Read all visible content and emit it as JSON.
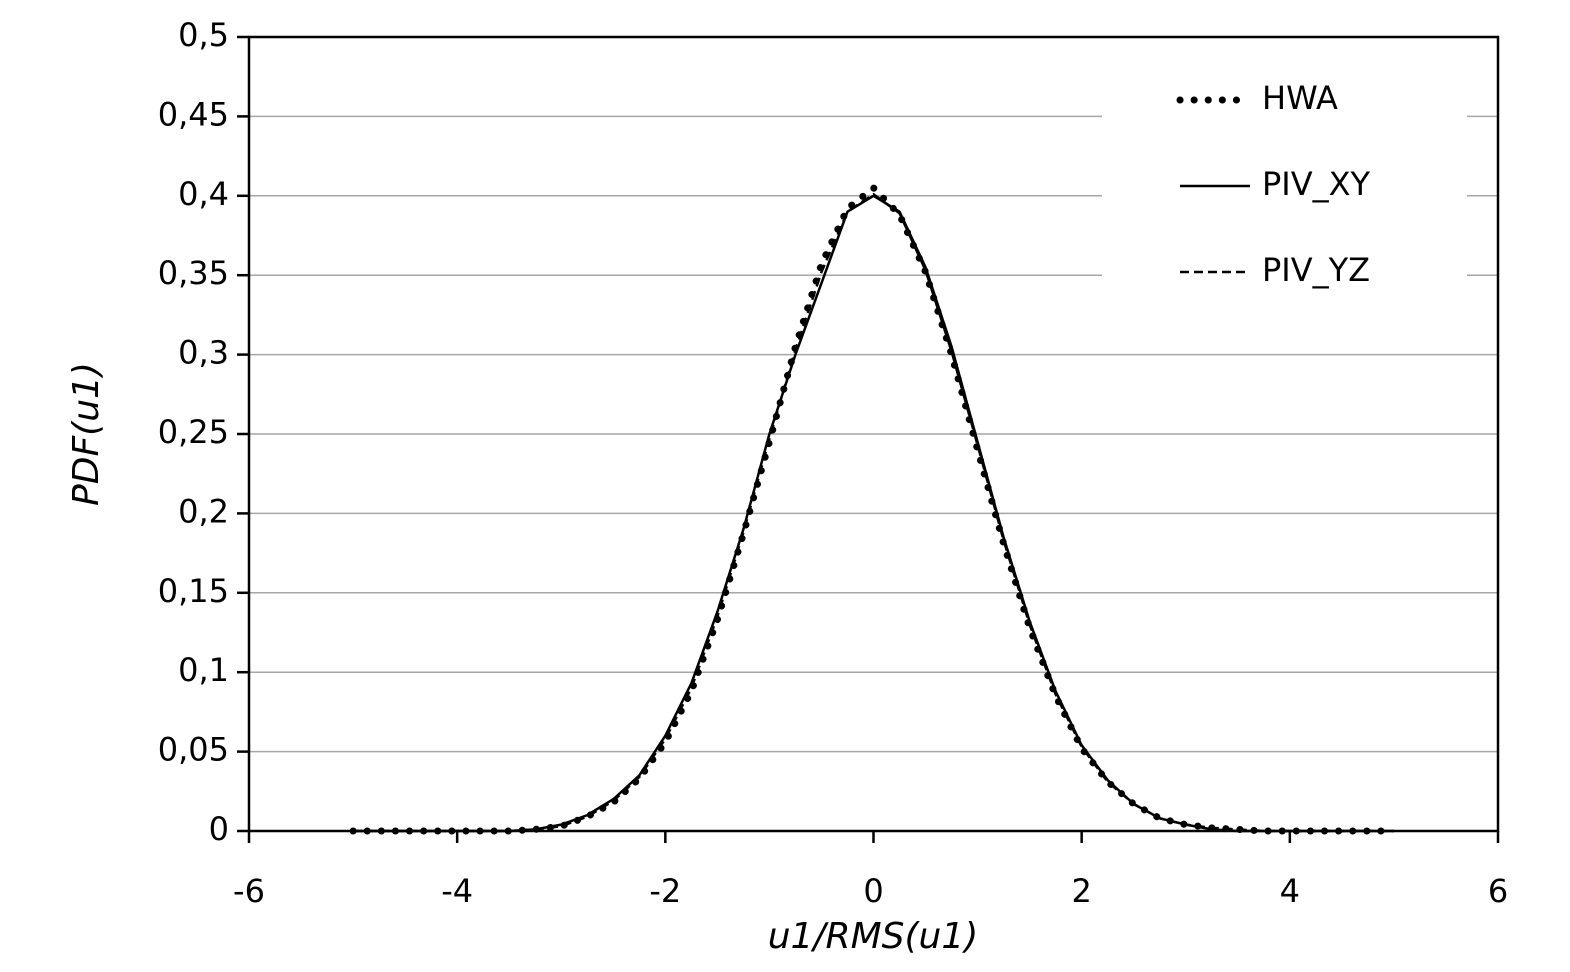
{
  "chart_data": {
    "type": "line",
    "x_label": "u1/RMS(u1)",
    "y_label": "PDF(u1)",
    "x": [
      -5,
      -4.75,
      -4.5,
      -4.25,
      -4,
      -3.75,
      -3.5,
      -3.25,
      -3,
      -2.75,
      -2.5,
      -2.25,
      -2,
      -1.75,
      -1.5,
      -1.25,
      -1,
      -0.75,
      -0.5,
      -0.25,
      0,
      0.25,
      0.5,
      0.75,
      1,
      1.25,
      1.5,
      1.75,
      2,
      2.25,
      2.5,
      2.75,
      3,
      3.25,
      3.5,
      3.75,
      4,
      4.25,
      4.5,
      4.75,
      5
    ],
    "series": [
      {
        "name": "HWA",
        "color": "#000000",
        "dash": "dotted",
        "values": [
          0,
          0,
          0,
          0,
          0,
          0,
          0,
          0.001,
          0.003,
          0.009,
          0.018,
          0.033,
          0.056,
          0.088,
          0.133,
          0.187,
          0.245,
          0.305,
          0.357,
          0.392,
          0.405,
          0.388,
          0.352,
          0.3,
          0.24,
          0.181,
          0.128,
          0.085,
          0.052,
          0.031,
          0.017,
          0.008,
          0.004,
          0.002,
          0.001,
          0,
          0,
          0,
          0,
          0,
          0
        ]
      },
      {
        "name": "PIV_XY",
        "color": "#000000",
        "dash": "solid",
        "values": [
          0,
          0,
          0,
          0,
          0,
          0,
          0,
          0.001,
          0.004,
          0.01,
          0.02,
          0.035,
          0.06,
          0.093,
          0.138,
          0.19,
          0.25,
          0.3,
          0.345,
          0.39,
          0.4,
          0.39,
          0.355,
          0.305,
          0.245,
          0.185,
          0.132,
          0.088,
          0.054,
          0.032,
          0.017,
          0.008,
          0.004,
          0.001,
          0,
          0,
          0,
          0,
          0,
          0,
          0
        ]
      },
      {
        "name": "PIV_YZ",
        "color": "#000000",
        "dash": "dashed",
        "values": [
          0,
          0,
          0,
          0,
          0,
          0,
          0,
          0.001,
          0.003,
          0.009,
          0.019,
          0.034,
          0.058,
          0.09,
          0.135,
          0.188,
          0.247,
          0.303,
          0.352,
          0.39,
          0.401,
          0.389,
          0.353,
          0.302,
          0.243,
          0.183,
          0.13,
          0.086,
          0.053,
          0.031,
          0.017,
          0.008,
          0.004,
          0.002,
          0.001,
          0,
          0,
          0,
          0,
          0,
          0
        ]
      }
    ],
    "xlim": [
      -6,
      6
    ],
    "xticks": [
      -6,
      -4,
      -2,
      0,
      2,
      4,
      6
    ],
    "ylim": [
      0,
      0.5
    ],
    "yticks": [
      0,
      {
        "value": 0.05,
        "label": "0,05"
      },
      {
        "value": 0.1,
        "label": "0,1"
      },
      {
        "value": 0.15,
        "label": "0,15"
      },
      {
        "value": 0.2,
        "label": "0,2"
      },
      {
        "value": 0.25,
        "label": "0,25"
      },
      {
        "value": 0.3,
        "label": "0,3"
      },
      {
        "value": 0.35,
        "label": "0,35"
      },
      {
        "value": 0.4,
        "label": "0,4"
      },
      {
        "value": 0.45,
        "label": "0,45"
      },
      {
        "value": 0.5,
        "label": "0,5"
      }
    ],
    "grid": true,
    "legend": "upper right"
  }
}
